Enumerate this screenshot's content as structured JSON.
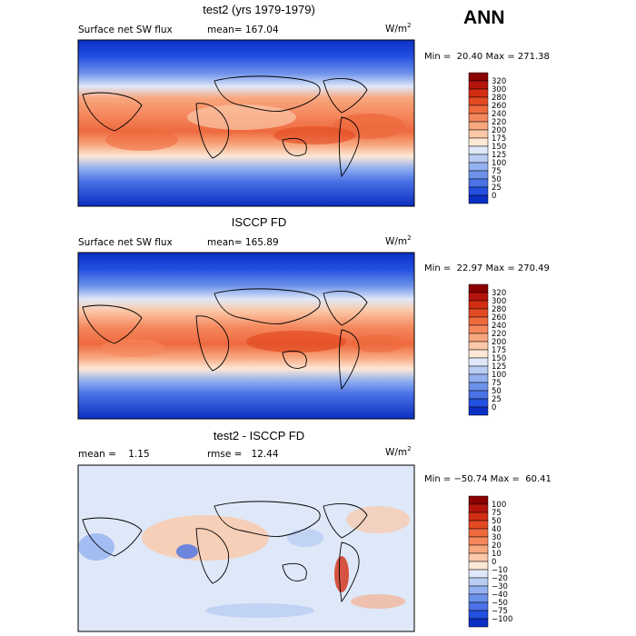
{
  "season": "ANN",
  "panels": [
    {
      "title": "test2 (yrs 1979-1979)",
      "variable": "Surface net SW flux",
      "stat": "mean= 167.04",
      "units": "W/m",
      "units_sup": "2",
      "minmax": "Min =  20.40 Max = 271.38",
      "colorbar": [
        "320",
        "300",
        "280",
        "260",
        "240",
        "220",
        "200",
        "175",
        "150",
        "125",
        "100",
        "75",
        "50",
        "25",
        "0"
      ],
      "colors": [
        "#8b0000",
        "#b5140c",
        "#d22d12",
        "#e34a22",
        "#ee6a3e",
        "#f5875d",
        "#f8a77f",
        "#fbc8a8",
        "#fde8d6",
        "#dfe8f8",
        "#b9cdf4",
        "#93b1f0",
        "#6d92eb",
        "#4b72e6",
        "#2350e0",
        "#0a2fc2"
      ]
    },
    {
      "title": "ISCCP FD",
      "variable": "Surface net SW flux",
      "stat": "mean= 165.89",
      "units": "W/m",
      "units_sup": "2",
      "minmax": "Min =  22.97 Max = 270.49",
      "colorbar": [
        "320",
        "300",
        "280",
        "260",
        "240",
        "220",
        "200",
        "175",
        "150",
        "125",
        "100",
        "75",
        "50",
        "25",
        "0"
      ],
      "colors": [
        "#8b0000",
        "#b5140c",
        "#d22d12",
        "#e34a22",
        "#ee6a3e",
        "#f5875d",
        "#f8a77f",
        "#fbc8a8",
        "#fde8d6",
        "#dfe8f8",
        "#b9cdf4",
        "#93b1f0",
        "#6d92eb",
        "#4b72e6",
        "#2350e0",
        "#0a2fc2"
      ]
    },
    {
      "title": "test2 - ISCCP FD",
      "variable": "mean =    1.15",
      "stat": "rmse =   12.44",
      "units": "W/m",
      "units_sup": "2",
      "minmax": "Min = −50.74 Max =  60.41",
      "colorbar": [
        "100",
        "75",
        "50",
        "40",
        "30",
        "20",
        "10",
        "0",
        "−10",
        "−20",
        "−30",
        "−40",
        "−50",
        "−75",
        "−100"
      ],
      "colors": [
        "#8b0000",
        "#b5140c",
        "#d22d12",
        "#e34a22",
        "#ee6a3e",
        "#f5875d",
        "#f8a77f",
        "#fbc8a8",
        "#fde8d6",
        "#dfe8f8",
        "#b9cdf4",
        "#93b1f0",
        "#6d92eb",
        "#4b72e6",
        "#2350e0",
        "#0a2fc2"
      ]
    }
  ]
}
